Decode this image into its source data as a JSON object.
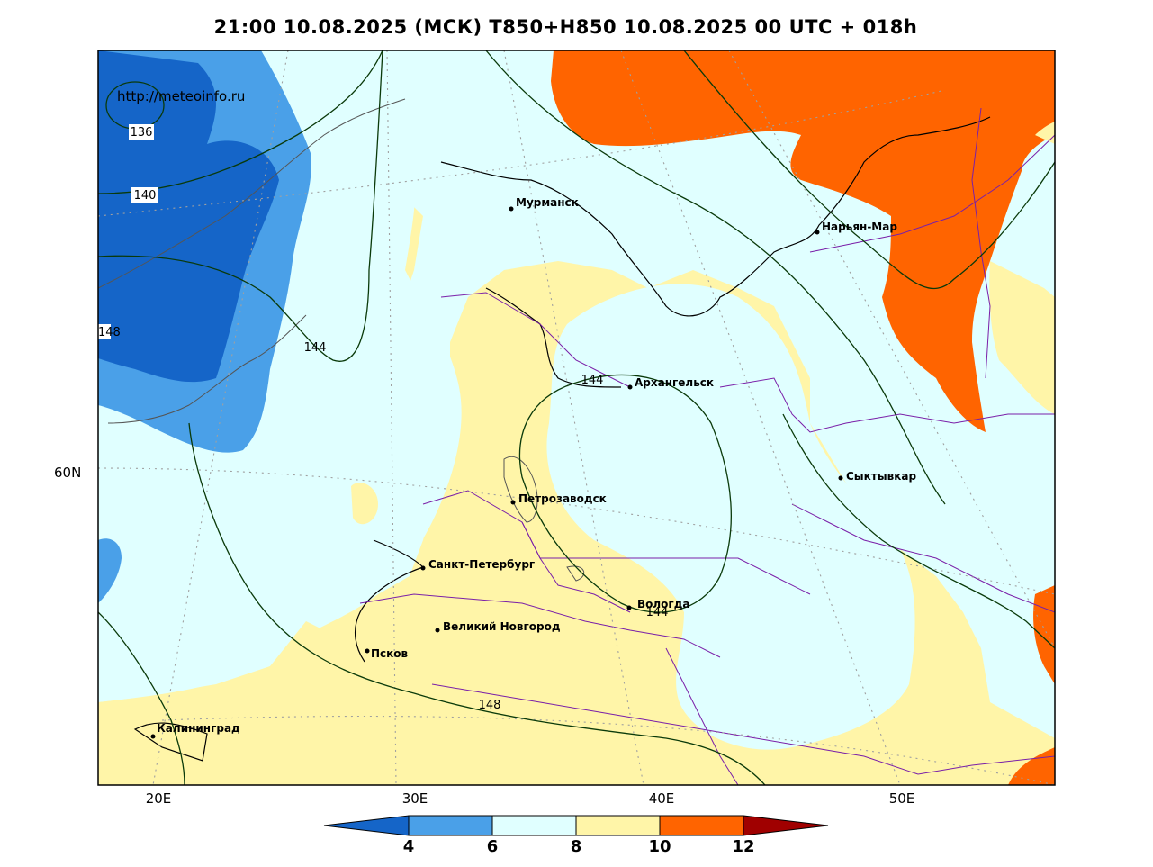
{
  "title": "21:00 10.08.2025 (МСК) T850+H850 10.08.2025 00 UTC + 018h",
  "watermark": "http://meteoinfo.ru",
  "axes": {
    "lon_labels": [
      "20E",
      "30E",
      "40E",
      "50E"
    ],
    "lat_labels": [
      "60N"
    ]
  },
  "cities": [
    {
      "name": "Мурманск"
    },
    {
      "name": "Нарьян-Мар"
    },
    {
      "name": "Архангельск"
    },
    {
      "name": "Сыктывкар"
    },
    {
      "name": "Петрозаводск"
    },
    {
      "name": "Санкт-Петербург"
    },
    {
      "name": "Вологда"
    },
    {
      "name": "Великий Новгород"
    },
    {
      "name": "Псков"
    },
    {
      "name": "Калининград"
    }
  ],
  "contour_labels": [
    "136",
    "140",
    "144",
    "144",
    "144",
    "148",
    "148"
  ],
  "colorbar": {
    "ticks": [
      "4",
      "6",
      "8",
      "10",
      "12"
    ],
    "colors": [
      "#1565c8",
      "#4aa0e8",
      "#e0ffff",
      "#fff5a8",
      "#ff6400",
      "#a00000"
    ]
  }
}
